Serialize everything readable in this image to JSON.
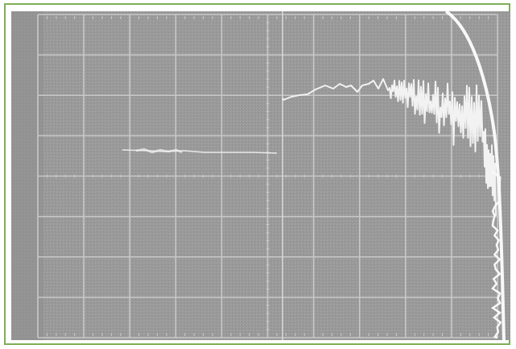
{
  "image": {
    "kind": "oscilloscope screen photograph",
    "grid": {
      "columns": 10,
      "rows": 8
    },
    "colors": {
      "frame": "#7fae57",
      "screen": "#9a9a9a",
      "graticule": "#c8c8c8",
      "trace": "#f2f2f2"
    }
  }
}
